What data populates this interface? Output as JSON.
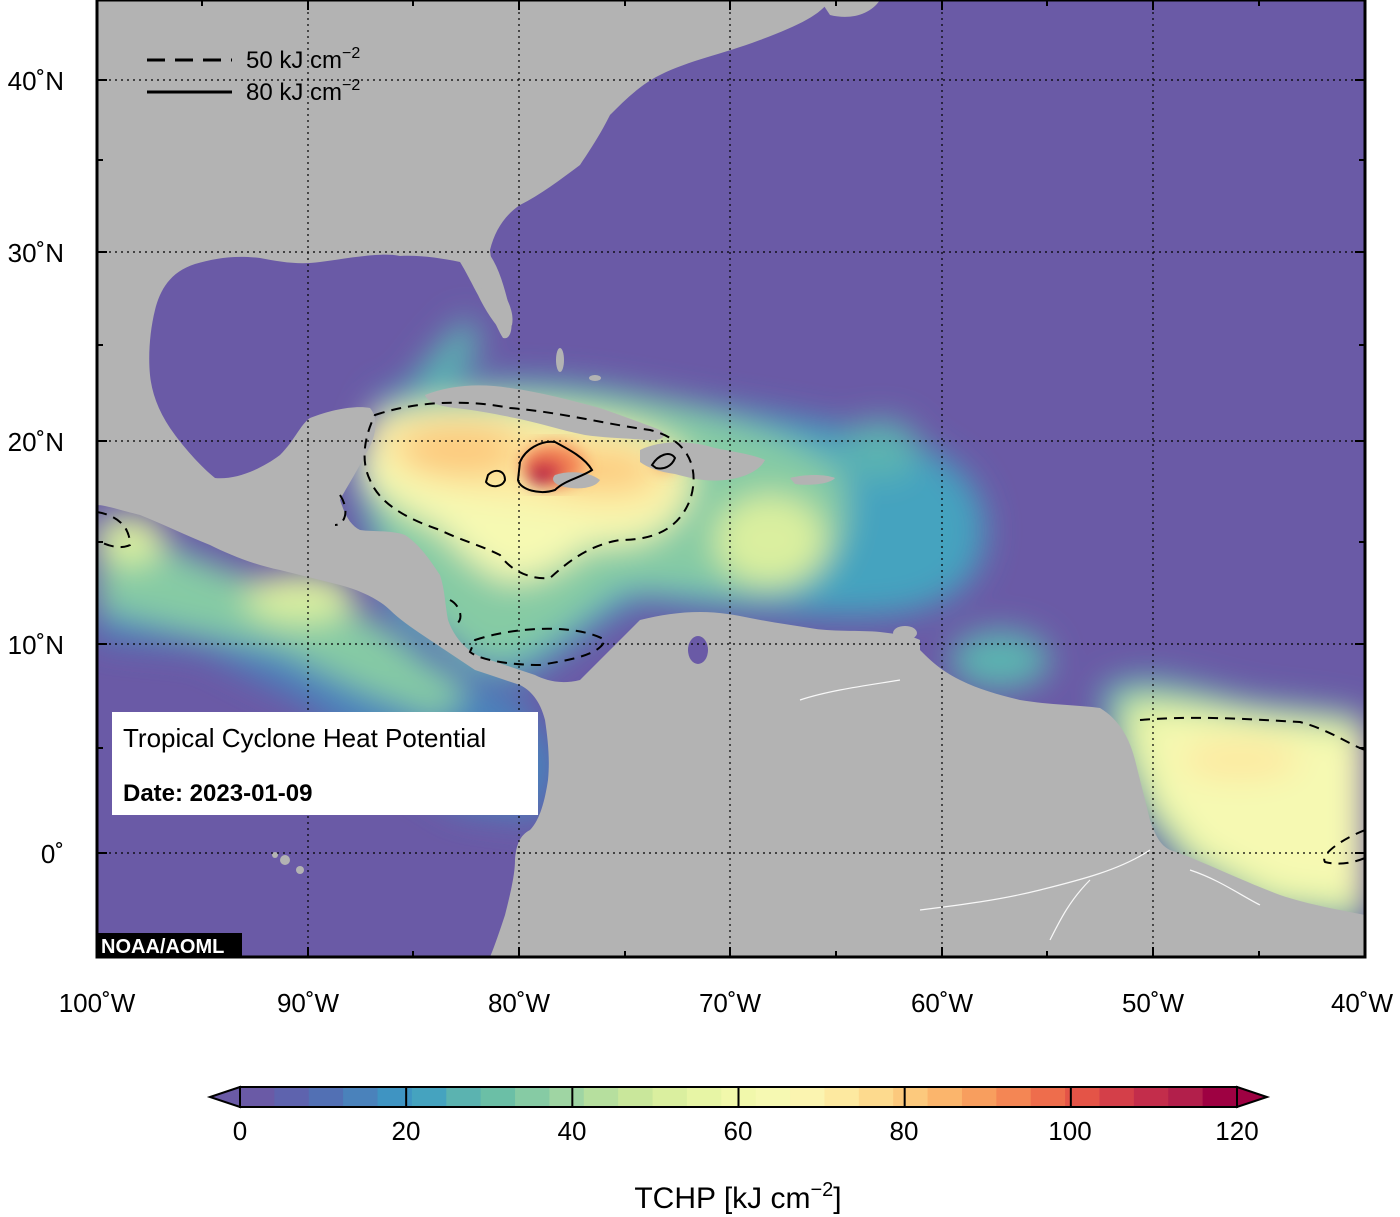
{
  "map": {
    "title_box": {
      "title": "Tropical Cyclone Heat Potential",
      "date": "Date: 2023-01-09"
    },
    "credit": "NOAA/AOML",
    "legend": {
      "dashed_label": "50 kJ cm",
      "solid_label": "80 kJ cm",
      "superscript": "−2"
    },
    "lat_labels": [
      "40˚N",
      "30˚N",
      "20˚N",
      "10˚N",
      "0˚"
    ],
    "lon_labels": [
      "100˚W",
      "90˚W",
      "80˚W",
      "70˚W",
      "60˚W",
      "50˚W",
      "40˚W"
    ],
    "colorbar": {
      "ticks": [
        "0",
        "20",
        "40",
        "60",
        "80",
        "100",
        "120"
      ],
      "label_main": "TCHP [kJ cm",
      "label_sup": "−2",
      "label_end": "]",
      "colors": [
        "#6a5aa6",
        "#5e63ae",
        "#5270b4",
        "#4a82bb",
        "#3f94c2",
        "#45a3bf",
        "#5bb3b0",
        "#6bbfa6",
        "#86cba4",
        "#9fd5a3",
        "#b6df9e",
        "#c9e79b",
        "#daef9f",
        "#e7f5a5",
        "#f1f8ab",
        "#f6f9b2",
        "#fbf4b0",
        "#fde9a0",
        "#fdda8e",
        "#fcc97d",
        "#fbb56c",
        "#f89e5e",
        "#f48654",
        "#ee6d4c",
        "#e45447",
        "#d43f49",
        "#c32d4b",
        "#b21f4b",
        "#9e0142"
      ]
    },
    "colors": {
      "land": "#b3b3b3",
      "ocean_low": "#6a5aa6",
      "frame": "#000000"
    }
  }
}
